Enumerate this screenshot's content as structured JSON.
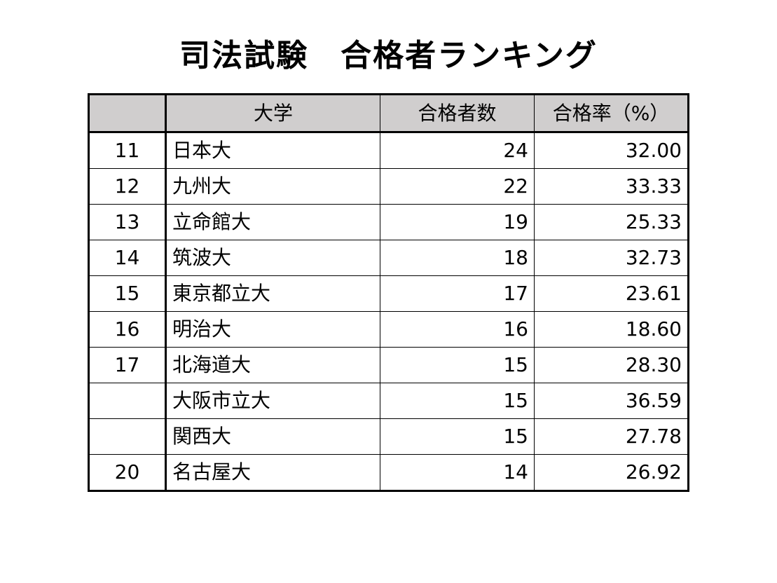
{
  "title": "司法試験　合格者ランキング",
  "table": {
    "headers": {
      "rank": "",
      "university": "大学",
      "passers": "合格者数",
      "pass_rate": "合格率（%）"
    },
    "rows": [
      {
        "rank": "11",
        "university": "日本大",
        "passers": "24",
        "pass_rate": "32.00"
      },
      {
        "rank": "12",
        "university": "九州大",
        "passers": "22",
        "pass_rate": "33.33"
      },
      {
        "rank": "13",
        "university": "立命館大",
        "passers": "19",
        "pass_rate": "25.33"
      },
      {
        "rank": "14",
        "university": "筑波大",
        "passers": "18",
        "pass_rate": "32.73"
      },
      {
        "rank": "15",
        "university": "東京都立大",
        "passers": "17",
        "pass_rate": "23.61"
      },
      {
        "rank": "16",
        "university": "明治大",
        "passers": "16",
        "pass_rate": "18.60"
      },
      {
        "rank": "17",
        "university": "北海道大",
        "passers": "15",
        "pass_rate": "28.30"
      },
      {
        "rank": "",
        "university": "大阪市立大",
        "passers": "15",
        "pass_rate": "36.59"
      },
      {
        "rank": "",
        "university": "関西大",
        "passers": "15",
        "pass_rate": "27.78"
      },
      {
        "rank": "20",
        "university": "名古屋大",
        "passers": "14",
        "pass_rate": "26.92"
      }
    ]
  }
}
